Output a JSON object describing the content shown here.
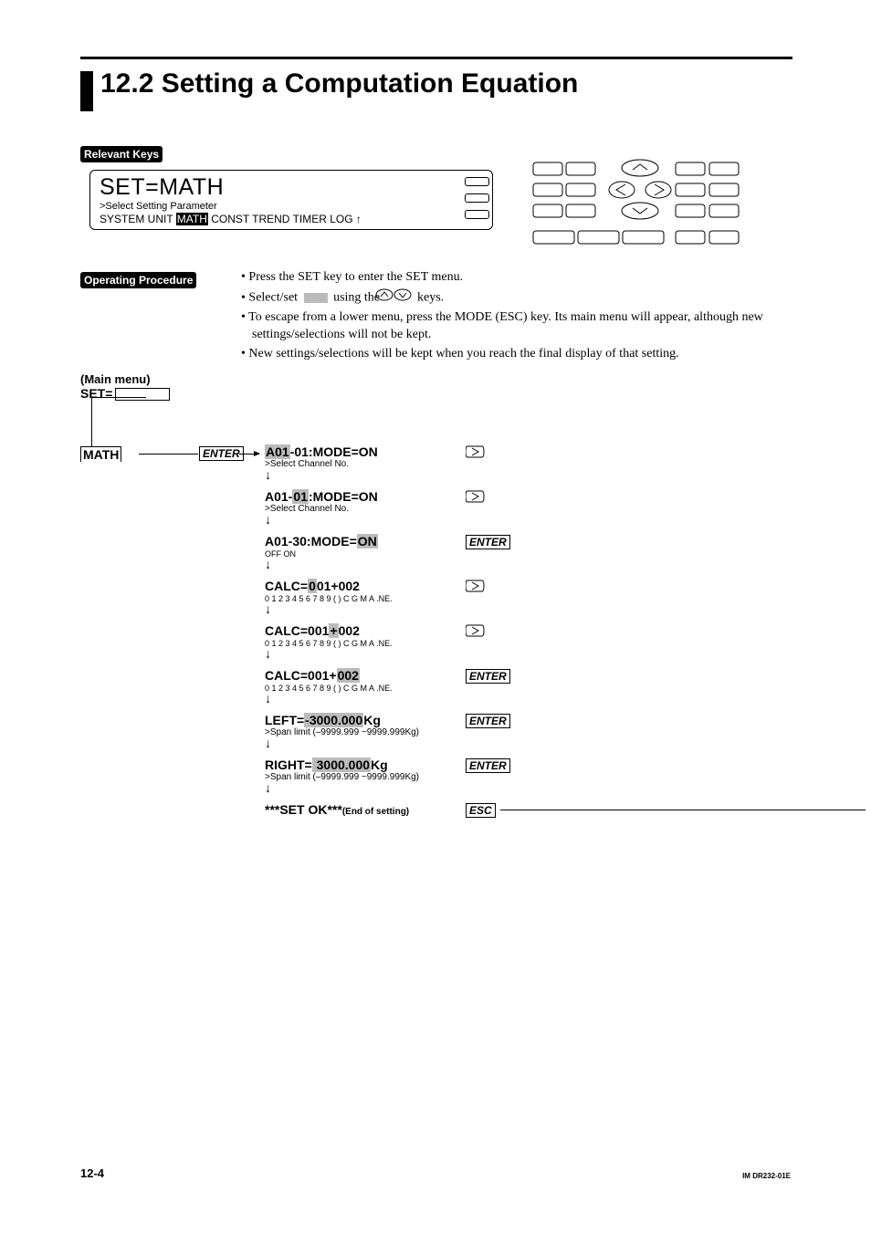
{
  "title": "12.2 Setting a Computation Equation",
  "badges": {
    "relevant_keys": "Relevant Keys",
    "operating_procedure": "Operating Procedure"
  },
  "display": {
    "big": "SET=MATH",
    "sub": ">Select Setting Parameter",
    "menu_items": [
      "SYSTEM",
      "UNIT",
      "MATH",
      "CONST",
      "TREND",
      "TIMER",
      "LOG",
      "↑"
    ],
    "menu_selected_index": 2
  },
  "procedure": {
    "b1_pre": "Press the SET key to enter the SET menu.",
    "b2_a": "Select/set ",
    "b2_b": " using the ",
    "b2_c": " keys.",
    "b3": "To escape from a lower menu, press the MODE (ESC) key.  Its main menu will appear, although new settings/selections will not be kept.",
    "b4": "New settings/selections will be kept when you reach the final display of that setting."
  },
  "flow": {
    "main_menu": "(Main menu)",
    "set_eq": "SET=",
    "math": "MATH",
    "enter": "ENTER",
    "esc": "ESC",
    "steps": [
      {
        "label_pre": "",
        "label_sel": "A01",
        "label_post": "-01:MODE=ON",
        "sub": ">Select Channel No.",
        "btn": "right"
      },
      {
        "label_pre": "A01-",
        "label_sel": "01",
        "label_post": ":MODE=ON",
        "sub": ">Select Channel No.",
        "btn": "right"
      },
      {
        "label_pre": "A01-30:MODE=",
        "label_sel": "ON",
        "label_post": "",
        "sub": "OFF  ON",
        "btn": "enter"
      },
      {
        "label_pre": "CALC=",
        "label_sel": "0",
        "label_post": "01+002",
        "sub": "0 1 2 3 4 5 6 7 8 9 ( ) C G M A .NE.",
        "btn": "right"
      },
      {
        "label_pre": "CALC=001",
        "label_sel": "+",
        "label_post": "002",
        "sub": "0 1 2 3 4 5 6 7 8 9 ( ) C G M A .NE.",
        "btn": "right"
      },
      {
        "label_pre": "CALC=001+",
        "label_sel": "002",
        "label_post": "",
        "sub": "0 1 2 3 4 5 6 7 8 9 ( ) C G M A .NE.",
        "btn": "enter"
      },
      {
        "label_pre": "LEFT=",
        "label_sel": "-3000.000",
        "label_post": "Kg",
        "sub": ">Span limit (–9999.999 ~9999.999Kg)",
        "btn": "enter"
      },
      {
        "label_pre": "RIGHT=",
        "label_sel": " 3000.000",
        "label_post": "Kg",
        "sub": ">Span limit (–9999.999 ~9999.999Kg)",
        "btn": "enter"
      }
    ],
    "final_label": "***SET OK***",
    "final_note": "(End of setting)"
  },
  "footer": {
    "page": "12-4",
    "doc_id": "IM DR232-01E"
  },
  "colors": {
    "text": "#000000",
    "bg": "#ffffff",
    "sel_bg": "#bbbbbb"
  }
}
